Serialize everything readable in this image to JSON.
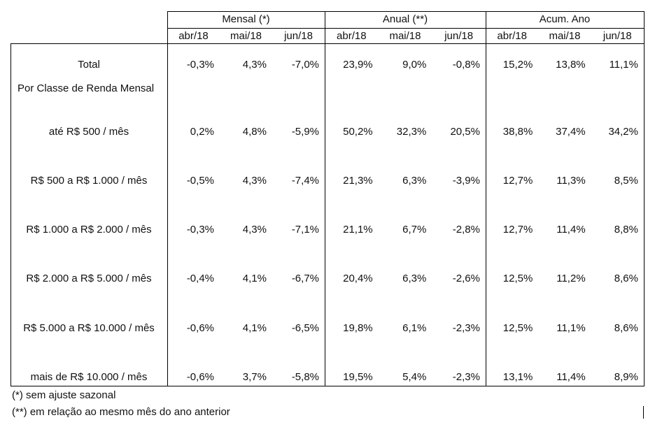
{
  "groups": [
    "Mensal (*)",
    "Anual (**)",
    "Acum. Ano"
  ],
  "months": [
    "abr/18",
    "mai/18",
    "jun/18"
  ],
  "rows": [
    {
      "label": "Total",
      "values": [
        "-0,3%",
        "4,3%",
        "-7,0%",
        "23,9%",
        "9,0%",
        "-0,8%",
        "15,2%",
        "13,8%",
        "11,1%"
      ]
    },
    {
      "label": "Por Classe de Renda Mensal",
      "values": []
    },
    {
      "label": "até R$ 500 / mês",
      "values": [
        "0,2%",
        "4,8%",
        "-5,9%",
        "50,2%",
        "32,3%",
        "20,5%",
        "38,8%",
        "37,4%",
        "34,2%"
      ]
    },
    {
      "label": "R$ 500 a R$ 1.000 / mês",
      "values": [
        "-0,5%",
        "4,3%",
        "-7,4%",
        "21,3%",
        "6,3%",
        "-3,9%",
        "12,7%",
        "11,3%",
        "8,5%"
      ]
    },
    {
      "label": "R$ 1.000 a R$ 2.000 / mês",
      "values": [
        "-0,3%",
        "4,3%",
        "-7,1%",
        "21,1%",
        "6,7%",
        "-2,8%",
        "12,7%",
        "11,4%",
        "8,8%"
      ]
    },
    {
      "label": "R$ 2.000 a R$ 5.000 / mês",
      "values": [
        "-0,4%",
        "4,1%",
        "-6,7%",
        "20,4%",
        "6,3%",
        "-2,6%",
        "12,5%",
        "11,2%",
        "8,6%"
      ]
    },
    {
      "label": "R$ 5.000 a R$ 10.000 / mês",
      "values": [
        "-0,6%",
        "4,1%",
        "-6,5%",
        "19,8%",
        "6,1%",
        "-2,3%",
        "12,5%",
        "11,1%",
        "8,6%"
      ]
    },
    {
      "label": "mais de R$ 10.000 / mês",
      "values": [
        "-0,6%",
        "3,7%",
        "-5,8%",
        "19,5%",
        "5,4%",
        "-2,3%",
        "13,1%",
        "11,4%",
        "8,9%"
      ]
    }
  ],
  "footnotes": [
    "(*) sem ajuste sazonal",
    "(**) em relação ao mesmo mês do ano anterior"
  ]
}
